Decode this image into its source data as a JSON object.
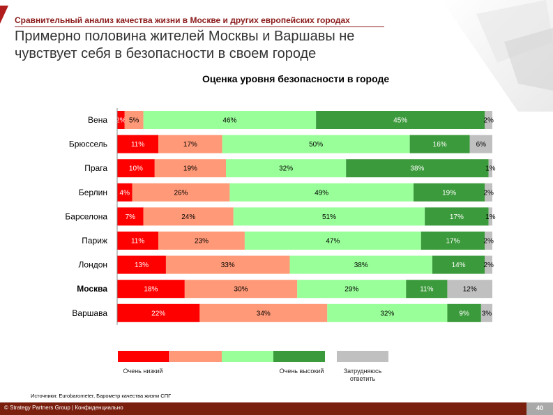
{
  "header": {
    "supertitle": "Сравнительный анализ качества жизни в Москве и других европейских городах",
    "headline": "Примерно половина жителей Москвы и Варшавы не чувствует себя в безопасности в своем городе"
  },
  "chart_data": {
    "type": "bar",
    "orientation": "horizontal",
    "stacked": true,
    "normalized": true,
    "title": "Оценка уровня безопасности в городе",
    "categories": [
      "Вена",
      "Брюссель",
      "Прага",
      "Берлин",
      "Барселона",
      "Париж",
      "Лондон",
      "Москва",
      "Варшава"
    ],
    "emphasized_category": "Москва",
    "series": [
      {
        "name": "Очень низкий",
        "color": "#ff0000",
        "values": [
          2,
          11,
          10,
          4,
          7,
          11,
          13,
          18,
          22
        ]
      },
      {
        "color": "#ff9977",
        "values": [
          5,
          17,
          19,
          26,
          24,
          23,
          33,
          30,
          34
        ]
      },
      {
        "color": "#99ff99",
        "values": [
          46,
          50,
          32,
          49,
          51,
          47,
          38,
          29,
          32
        ]
      },
      {
        "name": "Очень высокий",
        "color": "#3b9a3b",
        "values": [
          45,
          16,
          38,
          19,
          17,
          17,
          14,
          11,
          9
        ]
      },
      {
        "name": "Затрудняюсь ответить",
        "color": "#c0c0c0",
        "values": [
          2,
          6,
          1,
          2,
          1,
          2,
          2,
          12,
          3
        ]
      }
    ],
    "value_suffix": "%",
    "legend": {
      "placement": "bottom",
      "label_low": "Очень низкий",
      "label_high": "Очень высокий",
      "label_na": "Затрудняюсь ответить"
    }
  },
  "footer": {
    "source": "Источники: Eurobarometer, Барометр качества жизни СПГ",
    "copyright": "© Strategy Partners Group | Конфиденциально",
    "page_number": "40"
  }
}
